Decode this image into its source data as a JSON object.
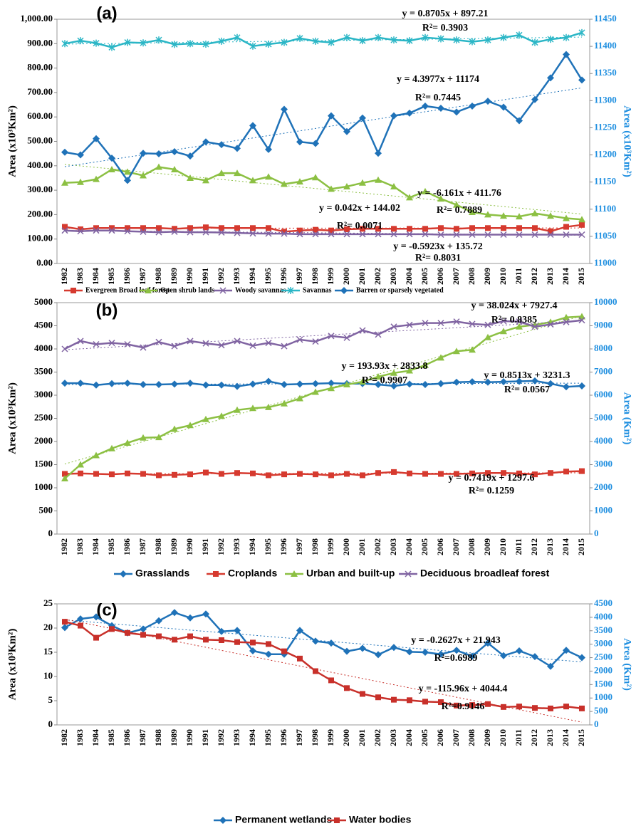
{
  "chart_data": [
    {
      "type": "line",
      "label": "(a)",
      "ylabel": "Area (x10³Km²)",
      "y2label": "Area (x10³Km²)",
      "categories": [
        "1982",
        "1983",
        "1984",
        "1985",
        "1986",
        "1987",
        "1988",
        "1989",
        "1990",
        "1991",
        "1992",
        "1993",
        "1994",
        "1995",
        "1996",
        "1997",
        "1998",
        "1999",
        "2000",
        "2001",
        "2002",
        "2003",
        "2004",
        "2005",
        "2006",
        "2007",
        "2008",
        "2009",
        "2010",
        "2011",
        "2012",
        "2013",
        "2014",
        "2015"
      ],
      "ylim": [
        0,
        1000
      ],
      "yticks": [
        {
          "value": 0,
          "label": "0.00"
        },
        {
          "value": 100,
          "label": "100.00"
        },
        {
          "value": 200,
          "label": "200.00"
        },
        {
          "value": 300,
          "label": "300.00"
        },
        {
          "value": 400,
          "label": "400.00"
        },
        {
          "value": 500,
          "label": "500.00"
        },
        {
          "value": 600,
          "label": "600.00"
        },
        {
          "value": 700,
          "label": "700.00"
        },
        {
          "value": 800,
          "label": "800.00"
        },
        {
          "value": 900,
          "label": "900.00"
        },
        {
          "value": 1000,
          "label": "1,000.00"
        }
      ],
      "y2lim": [
        11000,
        11450
      ],
      "y2ticks": [
        11000,
        11050,
        11100,
        11150,
        11200,
        11250,
        11300,
        11350,
        11400,
        11450
      ],
      "series": [
        {
          "name": "Evergreen Broad leaf forest",
          "color": "#d63a2f",
          "marker": "square",
          "equation": "y = 0.042x + 144.02",
          "r2_label": "R²= 0.0071",
          "trend": {
            "slope": 0.042,
            "intercept": 144.02
          },
          "values": [
            150,
            140,
            145,
            145,
            145,
            145,
            145,
            142,
            145,
            148,
            145,
            145,
            145,
            145,
            130,
            135,
            138,
            135,
            140,
            142,
            142,
            142,
            142,
            142,
            145,
            142,
            145,
            145,
            145,
            145,
            145,
            132,
            150,
            158
          ]
        },
        {
          "name": "Open shrub lands",
          "color": "#8cc043",
          "marker": "triangle",
          "equation": "y = -6.161x + 411.76",
          "r2_label": "R²= 0.7889",
          "trend": {
            "slope": -6.161,
            "intercept": 411.76
          },
          "values": [
            330,
            333,
            345,
            385,
            375,
            360,
            395,
            385,
            350,
            340,
            370,
            370,
            340,
            355,
            325,
            335,
            352,
            305,
            315,
            330,
            342,
            315,
            270,
            295,
            265,
            240,
            210,
            200,
            195,
            192,
            205,
            195,
            185,
            180
          ]
        },
        {
          "name": "Woody savannas",
          "color": "#8064a2",
          "marker": "x",
          "equation": "y = -0.5923x + 135.72",
          "r2_label": "R²= 0.8031",
          "trend": {
            "slope": -0.5923,
            "intercept": 135.72
          },
          "values": [
            135,
            132,
            135,
            135,
            132,
            130,
            128,
            130,
            128,
            128,
            127,
            125,
            123,
            122,
            122,
            120,
            120,
            120,
            120,
            120,
            120,
            120,
            120,
            120,
            118,
            118,
            118,
            118,
            118,
            118,
            118,
            118,
            118,
            118
          ]
        },
        {
          "name": "Savannas",
          "color": "#2bb6c6",
          "marker": "star",
          "equation": "y = 0.8705x + 897.21",
          "r2_label": "R²= 0.3903",
          "trend": {
            "slope": 0.8705,
            "intercept": 897.21
          },
          "values": [
            900,
            912,
            902,
            885,
            905,
            903,
            915,
            897,
            900,
            898,
            910,
            925,
            890,
            898,
            905,
            922,
            910,
            905,
            925,
            912,
            925,
            915,
            912,
            925,
            920,
            915,
            908,
            915,
            925,
            935,
            905,
            918,
            925,
            945
          ]
        },
        {
          "name": "Barren or sparsely vegetated",
          "color": "#1f72b8",
          "marker": "diamond",
          "axis": "y2",
          "equation": "y = 4.3977x + 11174",
          "r2_label": "R²= 0.7445",
          "trend": {
            "slope": 4.3977,
            "intercept": 11174
          },
          "values": [
            11205,
            11200,
            11230,
            11194,
            11153,
            11203,
            11202,
            11206,
            11198,
            11224,
            11219,
            11212,
            11254,
            11210,
            11284,
            11224,
            11221,
            11272,
            11243,
            11268,
            11203,
            11272,
            11277,
            11290,
            11286,
            11279,
            11290,
            11299,
            11288,
            11263,
            11302,
            11342,
            11385,
            11338
          ]
        }
      ]
    },
    {
      "type": "line",
      "label": "(b)",
      "ylabel": "Area (x10³Km²)",
      "y2label": "Area (Km²)",
      "categories": [
        "1982",
        "1983",
        "1984",
        "1985",
        "1986",
        "1987",
        "1988",
        "1989",
        "1990",
        "1991",
        "1992",
        "1993",
        "1994",
        "1995",
        "1996",
        "1997",
        "1998",
        "1999",
        "2000",
        "2001",
        "2002",
        "2003",
        "2004",
        "2005",
        "2006",
        "2007",
        "2008",
        "2009",
        "2010",
        "2011",
        "2012",
        "2013",
        "2014",
        "2015"
      ],
      "ylim": [
        0,
        5000
      ],
      "yticks": [
        0,
        500,
        1000,
        1500,
        2000,
        2500,
        3000,
        3500,
        4000,
        4500,
        5000
      ],
      "y2lim": [
        0,
        10000
      ],
      "y2ticks": [
        0,
        1000,
        2000,
        3000,
        4000,
        5000,
        6000,
        7000,
        8000,
        9000,
        10000
      ],
      "series": [
        {
          "name": "Grasslands",
          "color": "#1f72b8",
          "marker": "diamond",
          "equation": "y = 0.8513x + 3231.3",
          "r2_label": "R²= 0.0567",
          "trend": {
            "slope": 0.8513,
            "intercept": 3231.3
          },
          "values": [
            3260,
            3260,
            3220,
            3250,
            3260,
            3230,
            3230,
            3240,
            3260,
            3220,
            3220,
            3190,
            3240,
            3300,
            3230,
            3240,
            3250,
            3260,
            3250,
            3250,
            3230,
            3200,
            3240,
            3230,
            3250,
            3280,
            3290,
            3280,
            3290,
            3300,
            3310,
            3250,
            3180,
            3200
          ]
        },
        {
          "name": "Croplands",
          "color": "#d63a2f",
          "marker": "square",
          "equation": "y = 0.7419x + 1297.6",
          "r2_label": "R²= 0.1259",
          "trend": {
            "slope": 0.7419,
            "intercept": 1297.6
          },
          "values": [
            1300,
            1310,
            1300,
            1290,
            1310,
            1300,
            1270,
            1280,
            1290,
            1330,
            1300,
            1320,
            1310,
            1270,
            1290,
            1300,
            1290,
            1270,
            1300,
            1270,
            1320,
            1340,
            1310,
            1300,
            1300,
            1300,
            1310,
            1320,
            1320,
            1310,
            1290,
            1320,
            1350,
            1360
          ]
        },
        {
          "name": "Urban and built-up",
          "color": "#8cc043",
          "marker": "triangle",
          "axis": "y2",
          "equation": "y = 193.93x + 2833.8",
          "r2_label": "R²= 0.9907",
          "trend": {
            "slope": 193.93,
            "intercept": 2833.8
          },
          "values": [
            2400,
            3000,
            3400,
            3700,
            3940,
            4160,
            4180,
            4540,
            4700,
            4960,
            5100,
            5360,
            5440,
            5480,
            5640,
            5860,
            6140,
            6300,
            6460,
            6580,
            6800,
            6960,
            7060,
            7300,
            7620,
            7900,
            7960,
            8500,
            8760,
            8960,
            9040,
            9160,
            9360,
            9400
          ]
        },
        {
          "name": "Deciduous broadleaf forest",
          "color": "#8064a2",
          "marker": "x",
          "axis": "y2",
          "equation": "y = 38.024x + 7927.4",
          "r2_label": "R²= 0.8385",
          "trend": {
            "slope": 38.024,
            "intercept": 7927.4
          },
          "values": [
            8000,
            8340,
            8200,
            8260,
            8200,
            8060,
            8300,
            8120,
            8340,
            8240,
            8160,
            8340,
            8140,
            8260,
            8120,
            8400,
            8320,
            8560,
            8480,
            8800,
            8620,
            8960,
            9040,
            9120,
            9120,
            9180,
            9080,
            9040,
            9200,
            9180,
            8960,
            9060,
            9160,
            9240
          ]
        }
      ]
    },
    {
      "type": "line",
      "label": "(c)",
      "ylabel": "Area (x10³Km²)",
      "y2label": "Area (Km²)",
      "categories": [
        "1982",
        "1983",
        "1984",
        "1985",
        "1986",
        "1987",
        "1988",
        "1989",
        "1990",
        "1991",
        "1992",
        "1993",
        "1994",
        "1995",
        "1996",
        "1997",
        "1998",
        "1999",
        "2000",
        "2001",
        "2002",
        "2003",
        "2004",
        "2005",
        "2006",
        "2007",
        "2008",
        "2009",
        "2010",
        "2011",
        "2012",
        "2013",
        "2014",
        "2015"
      ],
      "ylim": [
        0,
        25
      ],
      "yticks": [
        0,
        5,
        10,
        15,
        20,
        25
      ],
      "y2lim": [
        0,
        4500
      ],
      "y2ticks": [
        0,
        500,
        1000,
        1500,
        2000,
        2500,
        3000,
        3500,
        4000,
        4500
      ],
      "series": [
        {
          "name": "Permanent wetlands",
          "color": "#1f72b8",
          "marker": "diamond",
          "equation": "y = -0.2627x + 21.943",
          "r2_label": "R²=0.6989",
          "trend": {
            "slope": -0.2627,
            "intercept": 21.943
          },
          "values": [
            20.1,
            21.9,
            22.3,
            20.5,
            19.0,
            19.8,
            21.5,
            23.2,
            22.1,
            22.9,
            19.3,
            19.5,
            15.3,
            14.6,
            14.6,
            19.5,
            17.3,
            16.9,
            15.2,
            15.8,
            14.5,
            16.0,
            15.1,
            15.0,
            14.6,
            15.4,
            14.2,
            16.9,
            14.3,
            15.3,
            14.1,
            12.1,
            15.4,
            13.9
          ]
        },
        {
          "name": "Water bodies",
          "color": "#c8302a",
          "marker": "square",
          "axis": "y2",
          "equation": "y = -115.96x + 4044.4",
          "r2_label": "R²=0.9146",
          "trend": {
            "slope": -115.96,
            "intercept": 4044.4
          },
          "values": [
            3834,
            3690,
            3240,
            3564,
            3420,
            3348,
            3294,
            3168,
            3294,
            3168,
            3150,
            3078,
            3060,
            3006,
            2736,
            2466,
            1998,
            1656,
            1368,
            1152,
            1026,
            936,
            918,
            864,
            846,
            720,
            738,
            774,
            666,
            684,
            630,
            612,
            684,
            612
          ]
        }
      ]
    }
  ]
}
